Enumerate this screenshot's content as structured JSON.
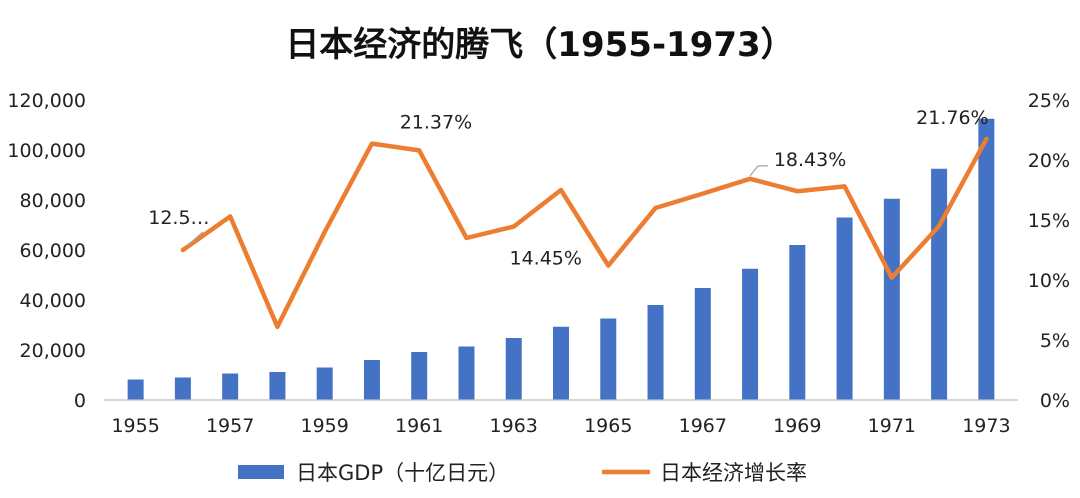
{
  "chart_data": {
    "type": "bar+line",
    "title": "日本经济的腾飞（1955-1973）",
    "categories": [
      "1955",
      "1956",
      "1957",
      "1958",
      "1959",
      "1960",
      "1961",
      "1962",
      "1963",
      "1964",
      "1965",
      "1966",
      "1967",
      "1968",
      "1969",
      "1970",
      "1971",
      "1972",
      "1973"
    ],
    "x_tick_labels": [
      "1955",
      "1957",
      "1959",
      "1961",
      "1963",
      "1965",
      "1967",
      "1969",
      "1971",
      "1973"
    ],
    "y_left": {
      "ticks": [
        "0",
        "20,000",
        "40,000",
        "60,000",
        "80,000",
        "100,000",
        "120,000"
      ],
      "min": 0,
      "max": 120000
    },
    "y_right": {
      "ticks": [
        "0%",
        "5%",
        "10%",
        "15%",
        "20%",
        "25%"
      ],
      "min": 0,
      "max": 25
    },
    "series": [
      {
        "name": "日本GDP（十亿日元）",
        "kind": "bar",
        "axis": "left",
        "color": "#4472C4",
        "values": [
          8200,
          9000,
          10600,
          11200,
          13000,
          16000,
          19200,
          21400,
          24800,
          29300,
          32600,
          38000,
          44800,
          52500,
          62000,
          73000,
          80500,
          92500,
          112500
        ]
      },
      {
        "name": "日本经济增长率",
        "kind": "line",
        "axis": "right",
        "color": "#ED7D31",
        "values": [
          null,
          12.5,
          15.3,
          6.1,
          14.0,
          21.37,
          20.8,
          13.5,
          14.45,
          17.5,
          11.2,
          16.0,
          17.2,
          18.43,
          17.4,
          17.8,
          10.2,
          14.5,
          21.76
        ]
      }
    ],
    "data_labels": [
      {
        "index": 1,
        "text": "12.5…"
      },
      {
        "index": 5,
        "text": "21.37%"
      },
      {
        "index": 8,
        "text": "14.45%"
      },
      {
        "index": 13,
        "text": "18.43%"
      },
      {
        "index": 18,
        "text": "21.76%"
      }
    ],
    "legend": {
      "placement": "bottom",
      "items": [
        "日本GDP（十亿日元）",
        "日本经济增长率"
      ]
    }
  }
}
